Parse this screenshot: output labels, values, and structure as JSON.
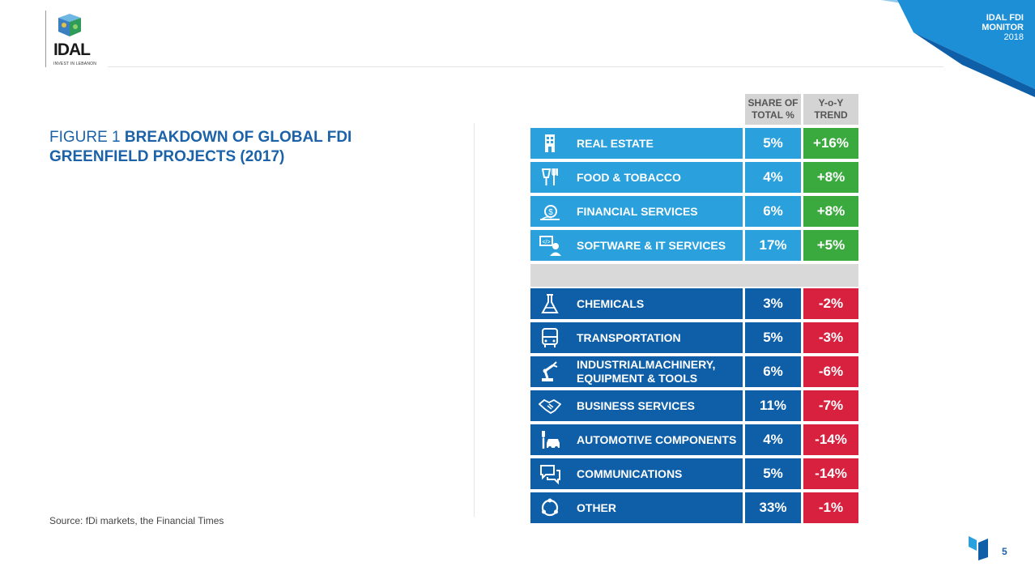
{
  "header": {
    "logo_text": "IDAL",
    "logo_tagline": "INVEST IN LEBANON",
    "ribbon_line1": "IDAL FDI",
    "ribbon_line2": "MONITOR",
    "ribbon_year": "2018"
  },
  "figure": {
    "number": "FIGURE 1",
    "title": "BREAKDOWN OF GLOBAL FDI GREENFIELD PROJECTS (2017)"
  },
  "table": {
    "col_share": "SHARE OF\nTOTAL %",
    "col_trend": "Y-o-Y\nTREND",
    "positive_rows": [
      {
        "icon": "building-icon",
        "label": "REAL ESTATE",
        "share": "5%",
        "trend": "+16%"
      },
      {
        "icon": "food-icon",
        "label": "FOOD & TOBACCO",
        "share": "4%",
        "trend": "+8%"
      },
      {
        "icon": "money-bag-icon",
        "label": "FINANCIAL SERVICES",
        "share": "6%",
        "trend": "+8%"
      },
      {
        "icon": "developer-icon",
        "label": "SOFTWARE & IT SERVICES",
        "share": "17%",
        "trend": "+5%"
      }
    ],
    "negative_rows": [
      {
        "icon": "flask-icon",
        "label": "CHEMICALS",
        "share": "3%",
        "trend": "-2%"
      },
      {
        "icon": "bus-icon",
        "label": "TRANSPORTATION",
        "share": "5%",
        "trend": "-3%"
      },
      {
        "icon": "robot-arm-icon",
        "label": "INDUSTRIALMACHINERY,\nEQUIPMENT & TOOLS",
        "share": "6%",
        "trend": "-6%"
      },
      {
        "icon": "handshake-icon",
        "label": "BUSINESS SERVICES",
        "share": "11%",
        "trend": "-7%"
      },
      {
        "icon": "car-wrench-icon",
        "label": "AUTOMOTIVE COMPONENTS",
        "share": "4%",
        "trend": "-14%"
      },
      {
        "icon": "chat-icon",
        "label": "COMMUNICATIONS",
        "share": "5%",
        "trend": "-14%"
      },
      {
        "icon": "cycle-icon",
        "label": "OTHER",
        "share": "33%",
        "trend": "-1%"
      }
    ]
  },
  "colors": {
    "positive_bg": "#2aa0dc",
    "positive_trend": "#3aaa3f",
    "negative_bg": "#0f5fa8",
    "negative_trend": "#d8203f",
    "title": "#1c62a8"
  },
  "source": "Source: fDi markets, the Financial Times",
  "page_number": "5"
}
